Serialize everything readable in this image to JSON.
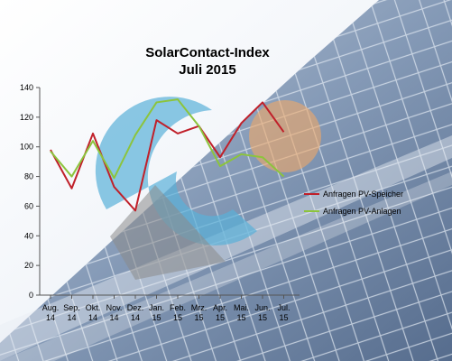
{
  "chart_data": {
    "type": "line",
    "title": "SolarContact-Index",
    "subtitle": "Juli 2015",
    "categories": [
      [
        "Aug.",
        "14"
      ],
      [
        "Sep.",
        "14"
      ],
      [
        "Okt.",
        "14"
      ],
      [
        "Nov.",
        "14"
      ],
      [
        "Dez.",
        "14"
      ],
      [
        "Jan.",
        "15"
      ],
      [
        "Feb.",
        "15"
      ],
      [
        "Mrz.",
        "15"
      ],
      [
        "Apr.",
        "15"
      ],
      [
        "Mai.",
        "15"
      ],
      [
        "Jun.",
        "15"
      ],
      [
        "Jul.",
        "15"
      ]
    ],
    "ylim": [
      0,
      140
    ],
    "yticks": [
      0,
      20,
      40,
      60,
      80,
      100,
      120,
      140
    ],
    "grid": false,
    "legend_position": "right",
    "series": [
      {
        "name": "Anfragen PV-Speicher",
        "color": "#c0202a",
        "values": [
          98,
          72,
          109,
          73,
          57,
          118,
          109,
          114,
          93,
          116,
          130,
          110
        ]
      },
      {
        "name": "Anfragen PV-Anlagen",
        "color": "#8cc43c",
        "values": [
          97,
          80,
          104,
          79,
          108,
          130,
          132,
          114,
          87,
          95,
          93,
          80
        ]
      }
    ]
  },
  "colors": {
    "logo_blue": "#5ab1d8",
    "logo_grey": "#8a8a8a",
    "logo_orange": "#f0a868"
  }
}
